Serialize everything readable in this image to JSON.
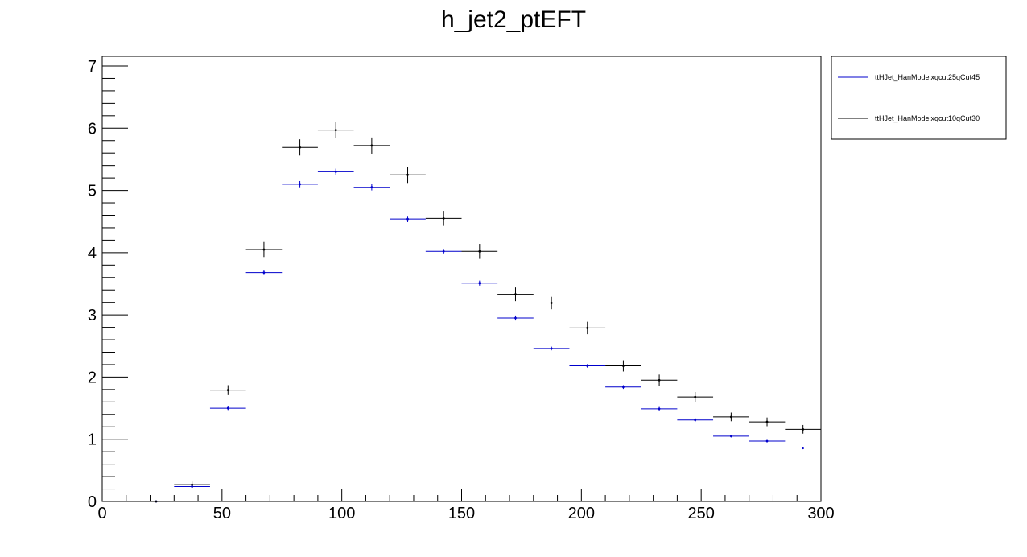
{
  "chart_data": {
    "type": "scatter",
    "title": "h_jet2_ptEFT",
    "xlabel": "",
    "ylabel": "",
    "xlim": [
      0,
      300
    ],
    "ylim": [
      0,
      7.2
    ],
    "bin_width": 15,
    "x_ticks": [
      0,
      50,
      100,
      150,
      200,
      250,
      300
    ],
    "y_ticks": [
      0,
      1,
      2,
      3,
      4,
      5,
      6,
      7
    ],
    "grid": false,
    "legend_position": "outside-top-right",
    "series": [
      {
        "name": "ttHJet_HanModelxqcut25qCut45",
        "color": "#0000cc",
        "x": [
          22.5,
          37.5,
          52.5,
          67.5,
          82.5,
          97.5,
          112.5,
          127.5,
          142.5,
          157.5,
          172.5,
          187.5,
          202.5,
          217.5,
          232.5,
          247.5,
          262.5,
          277.5,
          292.5
        ],
        "y": [
          0.0,
          0.24,
          1.5,
          3.68,
          5.1,
          5.3,
          5.05,
          4.54,
          4.02,
          3.51,
          2.95,
          2.46,
          2.18,
          1.84,
          1.49,
          1.31,
          1.05,
          0.97,
          0.86
        ],
        "yerr": [
          0.0,
          0.02,
          0.03,
          0.04,
          0.05,
          0.05,
          0.05,
          0.05,
          0.04,
          0.04,
          0.04,
          0.03,
          0.03,
          0.03,
          0.03,
          0.03,
          0.02,
          0.02,
          0.02
        ]
      },
      {
        "name": "ttHJet_HanModelxqcut10qCut30",
        "color": "#000000",
        "x": [
          22.5,
          37.5,
          52.5,
          67.5,
          82.5,
          97.5,
          112.5,
          127.5,
          142.5,
          157.5,
          172.5,
          187.5,
          202.5,
          217.5,
          232.5,
          247.5,
          262.5,
          277.5,
          292.5
        ],
        "y": [
          0.0,
          0.27,
          1.79,
          4.05,
          5.69,
          5.97,
          5.72,
          5.25,
          4.55,
          4.02,
          3.33,
          3.19,
          2.79,
          2.18,
          1.95,
          1.68,
          1.36,
          1.28,
          1.16
        ],
        "yerr": [
          0.0,
          0.05,
          0.08,
          0.12,
          0.13,
          0.13,
          0.13,
          0.13,
          0.12,
          0.12,
          0.11,
          0.1,
          0.1,
          0.09,
          0.09,
          0.08,
          0.07,
          0.07,
          0.07
        ]
      }
    ]
  }
}
